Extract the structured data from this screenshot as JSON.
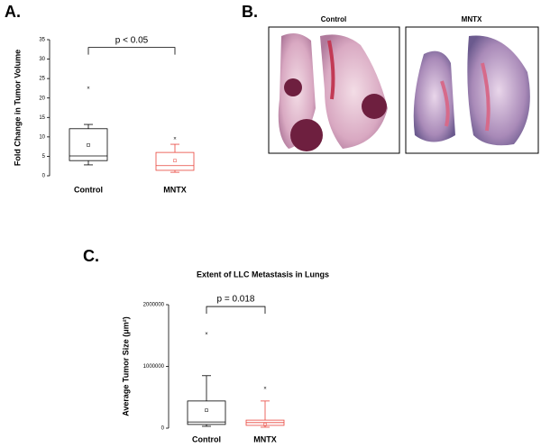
{
  "chart_data": [
    {
      "type": "box",
      "panel_label": "A.",
      "y_label": "Fold Change in Tumor Volume",
      "ylim": [
        0,
        35
      ],
      "yticks": [
        0,
        5,
        10,
        15,
        20,
        25,
        30,
        35
      ],
      "boxes": [
        {
          "name": "Control",
          "color": "#000000",
          "min": 2.8,
          "q1": 3.9,
          "median": 5.1,
          "q3": 12.1,
          "max": 13.2,
          "mean": 7.9,
          "outliers": [
            22.5
          ]
        },
        {
          "name": "MNTX",
          "color": "#e8453c",
          "min": 0.9,
          "q1": 1.4,
          "median": 2.6,
          "q3": 6.0,
          "max": 8.1,
          "mean": 3.9,
          "outliers": [
            9.5
          ]
        }
      ],
      "annotation": {
        "text": "p < 0.05",
        "value": 33
      }
    },
    {
      "type": "box",
      "panel_label": "C.",
      "title": "Extent of LLC Metastasis in Lungs",
      "y_label": "Average Tumor Size (μm²)",
      "ylim": [
        0,
        2000000
      ],
      "yticks": [
        0,
        1000000,
        2000000
      ],
      "boxes": [
        {
          "name": "Control",
          "color": "#000000",
          "min": 30000,
          "q1": 60000,
          "median": 100000,
          "q3": 440000,
          "max": 850000,
          "mean": 290000,
          "outliers": [
            1530000
          ]
        },
        {
          "name": "MNTX",
          "color": "#e8453c",
          "min": 15000,
          "q1": 45000,
          "median": 90000,
          "q3": 130000,
          "max": 440000,
          "mean": 60000,
          "outliers": [
            640000
          ]
        }
      ],
      "annotation": {
        "text": "p = 0.018",
        "value": 1970000
      }
    }
  ],
  "panel_b": {
    "label": "B.",
    "images": [
      "Control",
      "MNTX"
    ]
  }
}
